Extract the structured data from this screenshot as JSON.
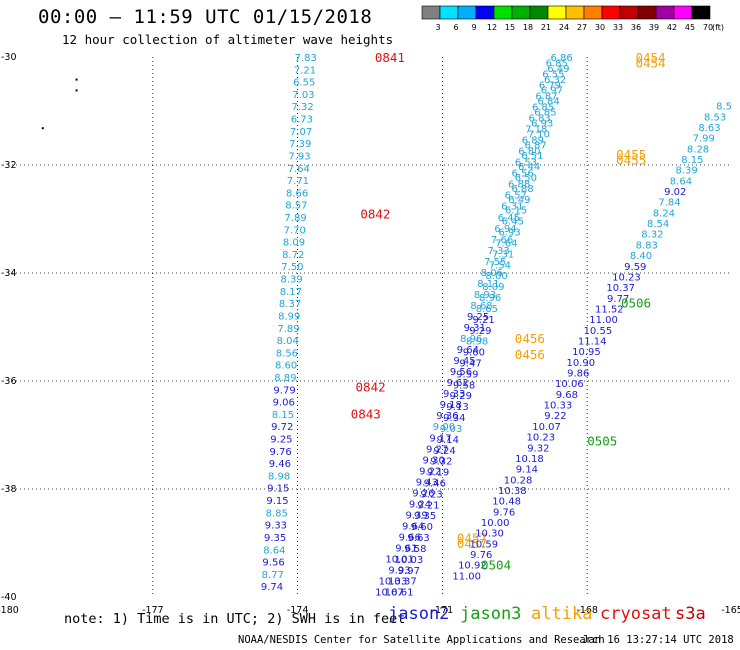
{
  "title": "00:00 – 11:59 UTC 01/15/2018",
  "subtitle": "12 hour collection of altimeter wave heights",
  "note": "note: 1) Time is in UTC; 2) SWH is in feet",
  "credit": "NOAA/NESDIS Center for Satellite Applications and Research",
  "timestamp": "Jan 16 13:27:14 UTC 2018",
  "satellites": [
    {
      "name": "jason2",
      "color": "#1a1ad6"
    },
    {
      "name": "jason3",
      "color": "#16a016"
    },
    {
      "name": "altika",
      "color": "#f5a000"
    },
    {
      "name": "cryosat",
      "color": "#e01010"
    },
    {
      "name": "s3a",
      "color": "#c40000"
    }
  ],
  "colorbar": {
    "unit": "(ft)",
    "labels": [
      "3",
      "6",
      "9",
      "12",
      "15",
      "18",
      "21",
      "24",
      "27",
      "30",
      "33",
      "36",
      "39",
      "42",
      "45",
      "70"
    ],
    "colors": [
      "#808080",
      "#00e0ff",
      "#00b0ff",
      "#0000ff",
      "#00e000",
      "#00b000",
      "#008800",
      "#ffff00",
      "#ffc000",
      "#ff8000",
      "#ff0000",
      "#c00000",
      "#800000",
      "#a000a0",
      "#ff00ff",
      "#000000"
    ]
  },
  "chart_data": {
    "type": "scatter",
    "xlim": [
      -180,
      -165
    ],
    "ylim": [
      -40,
      -30
    ],
    "xticks": [
      "-180",
      "-177",
      "-174",
      "-171",
      "-168",
      "-165"
    ],
    "yticks": [
      "-30",
      "-32",
      "-34",
      "-36",
      "-38",
      "-40"
    ],
    "xtick_vals": [
      -180,
      -177,
      -174,
      -171,
      -168,
      -165
    ],
    "ytick_vals": [
      -30,
      -32,
      -34,
      -36,
      -38,
      -40
    ],
    "tracks": [
      {
        "satellite": "cryosat",
        "lon_start": -173.6,
        "lon_end": -174.3,
        "lat_start": -30.0,
        "lat_end": -39.8,
        "values": [
          "7.83",
          "7.21",
          "6.55",
          "7.03",
          "7.32",
          "6.73",
          "7.07",
          "7.39",
          "7.93",
          "7.64",
          "7.71",
          "8.66",
          "8.57",
          "7.89",
          "7.70",
          "8.09",
          "8.72",
          "7.50",
          "8.39",
          "8.17",
          "8.37",
          "8.99",
          "7.89",
          "8.04",
          "8.56",
          "8.60",
          "8.89",
          "9.79",
          "9.06",
          "8.15",
          "9.72",
          "9.25",
          "9.76",
          "9.46",
          "8.98",
          "9.15",
          "9.15",
          "8.85",
          "9.33",
          "9.35",
          "8.64",
          "9.56",
          "8.77",
          "9.74"
        ],
        "colors": [
          "c",
          "c",
          "c",
          "c",
          "c",
          "c",
          "c",
          "c",
          "c",
          "c",
          "c",
          "c",
          "c",
          "c",
          "c",
          "c",
          "c",
          "c",
          "c",
          "c",
          "c",
          "c",
          "c",
          "c",
          "c",
          "c",
          "c",
          "b",
          "b",
          "c",
          "b",
          "b",
          "b",
          "b",
          "c",
          "b",
          "b",
          "c",
          "b",
          "b",
          "c",
          "b",
          "c",
          "b"
        ],
        "time_labels": [
          {
            "label": "0841",
            "lon": -172.4,
            "lat": -30.0
          },
          {
            "label": "0842",
            "lon": -172.7,
            "lat": -32.9
          },
          {
            "label": "0842",
            "lon": -172.8,
            "lat": -36.1
          },
          {
            "label": "0843",
            "lon": -172.9,
            "lat": -36.6
          }
        ]
      },
      {
        "satellite": "altika",
        "lon_start": -168.3,
        "lon_end": -171.6,
        "lat_start": -30.0,
        "lat_end": -39.9,
        "values": [
          "6.86",
          "6.49",
          "6.32",
          "6.97",
          "6.84",
          "6.85",
          "6.93",
          "7.10",
          "6.87",
          "6.51",
          "6.44",
          "6.50",
          "6.88",
          "6.49",
          "6.15",
          "6.45",
          "6.93",
          "7.64",
          "7.31",
          "7.54",
          "8.00",
          "8.09",
          "8.96",
          "8.65",
          "9.21",
          "9.29",
          "8.98",
          "9.60",
          "9.47",
          "9.59",
          "9.58",
          "9.29",
          "9.13",
          "9.34",
          "9.03",
          "9.14",
          "9.24",
          "9.32",
          "9.19",
          "9.46",
          "9.23",
          "9.21",
          "9.35",
          "9.60",
          "9.63",
          "9.58",
          "10.03",
          "9.97",
          "10.37",
          "10.61"
        ],
        "colors": [
          "c",
          "c",
          "c",
          "c",
          "c",
          "c",
          "c",
          "c",
          "c",
          "c",
          "c",
          "c",
          "c",
          "c",
          "c",
          "c",
          "c",
          "c",
          "c",
          "c",
          "c",
          "c",
          "c",
          "c",
          "b",
          "b",
          "c",
          "b",
          "b",
          "b",
          "b",
          "b",
          "b",
          "b",
          "c",
          "b",
          "b",
          "b",
          "b",
          "b",
          "b",
          "b",
          "b",
          "b",
          "b",
          "b",
          "b",
          "b",
          "b",
          "b"
        ],
        "time_labels": [
          {
            "label": "0454",
            "lon": -167.0,
            "lat": -30.0
          },
          {
            "label": "0455",
            "lon": -167.4,
            "lat": -31.8
          },
          {
            "label": "0456",
            "lon": -169.5,
            "lat": -35.2
          },
          {
            "label": "0457",
            "lon": -170.7,
            "lat": -38.9
          }
        ]
      },
      {
        "satellite": "altika",
        "lon_start": -168.4,
        "lon_end": -171.8,
        "lat_start": -30.1,
        "lat_end": -39.9,
        "values": [
          "6.85",
          "6.55",
          "6.79",
          "6.87",
          "6.85",
          "6.83",
          "7.18",
          "6.89",
          "6.80",
          "6.53",
          "6.56",
          "6.88",
          "6.57",
          "6.31",
          "6.45",
          "6.94",
          "7.66",
          "7.33",
          "7.55",
          "8.06",
          "8.11",
          "8.93",
          "8.68",
          "9.25",
          "9.31",
          "8.96",
          "9.64",
          "9.45",
          "9.56",
          "9.62",
          "9.33",
          "9.18",
          "9.36",
          "9.00",
          "9.17",
          "9.27",
          "9.30",
          "9.22",
          "9.43",
          "9.26",
          "9.24",
          "9.39",
          "9.64",
          "9.66",
          "9.61",
          "10.01",
          "9.93",
          "10.33",
          "10.67"
        ],
        "colors": [
          "c",
          "c",
          "c",
          "c",
          "c",
          "c",
          "c",
          "c",
          "c",
          "c",
          "c",
          "c",
          "c",
          "c",
          "c",
          "c",
          "c",
          "c",
          "c",
          "c",
          "c",
          "c",
          "c",
          "b",
          "b",
          "c",
          "b",
          "b",
          "b",
          "b",
          "b",
          "b",
          "b",
          "c",
          "b",
          "b",
          "b",
          "b",
          "b",
          "b",
          "b",
          "b",
          "b",
          "b",
          "b",
          "b",
          "b",
          "b",
          "b"
        ],
        "time_labels": [
          {
            "label": "0454",
            "lon": -167.0,
            "lat": -30.1
          },
          {
            "label": "0455",
            "lon": -167.4,
            "lat": -31.9
          },
          {
            "label": "0456",
            "lon": -169.5,
            "lat": -35.5
          },
          {
            "label": "0457",
            "lon": -170.7,
            "lat": -39.0
          }
        ]
      },
      {
        "satellite": "jason3",
        "lon_start": -165.0,
        "lon_end": -170.2,
        "lat_start": -30.9,
        "lat_end": -39.6,
        "values": [
          "8.5",
          "8.53",
          "8.63",
          "7.99",
          "8.28",
          "8.15",
          "8.39",
          "8.64",
          "9.02",
          "7.84",
          "8.24",
          "8.54",
          "8.32",
          "8.83",
          "8.40",
          "9.59",
          "10.23",
          "10.37",
          "9.77",
          "11.52",
          "11.00",
          "10.55",
          "11.14",
          "10.95",
          "10.90",
          "9.86",
          "10.06",
          "9.68",
          "10.33",
          "9.22",
          "10.07",
          "10.23",
          "9.32",
          "10.18",
          "9.14",
          "10.28",
          "10.38",
          "10.48",
          "9.76",
          "10.00",
          "10.30",
          "10.59",
          "9.76",
          "10.92",
          "11.00"
        ],
        "colors": [
          "c",
          "c",
          "c",
          "c",
          "c",
          "c",
          "c",
          "c",
          "b",
          "c",
          "c",
          "c",
          "c",
          "c",
          "c",
          "b",
          "b",
          "b",
          "b",
          "b",
          "b",
          "b",
          "b",
          "b",
          "b",
          "b",
          "b",
          "b",
          "b",
          "b",
          "b",
          "b",
          "b",
          "b",
          "b",
          "b",
          "b",
          "b",
          "b",
          "b",
          "b",
          "b",
          "b",
          "b",
          "b"
        ],
        "time_labels": [
          {
            "label": "0506",
            "lon": -167.3,
            "lat": -34.55
          },
          {
            "label": "0505",
            "lon": -168.0,
            "lat": -37.1
          },
          {
            "label": "0504",
            "lon": -170.2,
            "lat": -39.4
          }
        ]
      }
    ],
    "stray_points": [
      {
        "lon": -178.6,
        "lat": -30.4
      },
      {
        "lon": -178.6,
        "lat": -30.6
      },
      {
        "lon": -179.3,
        "lat": -31.3
      }
    ]
  }
}
